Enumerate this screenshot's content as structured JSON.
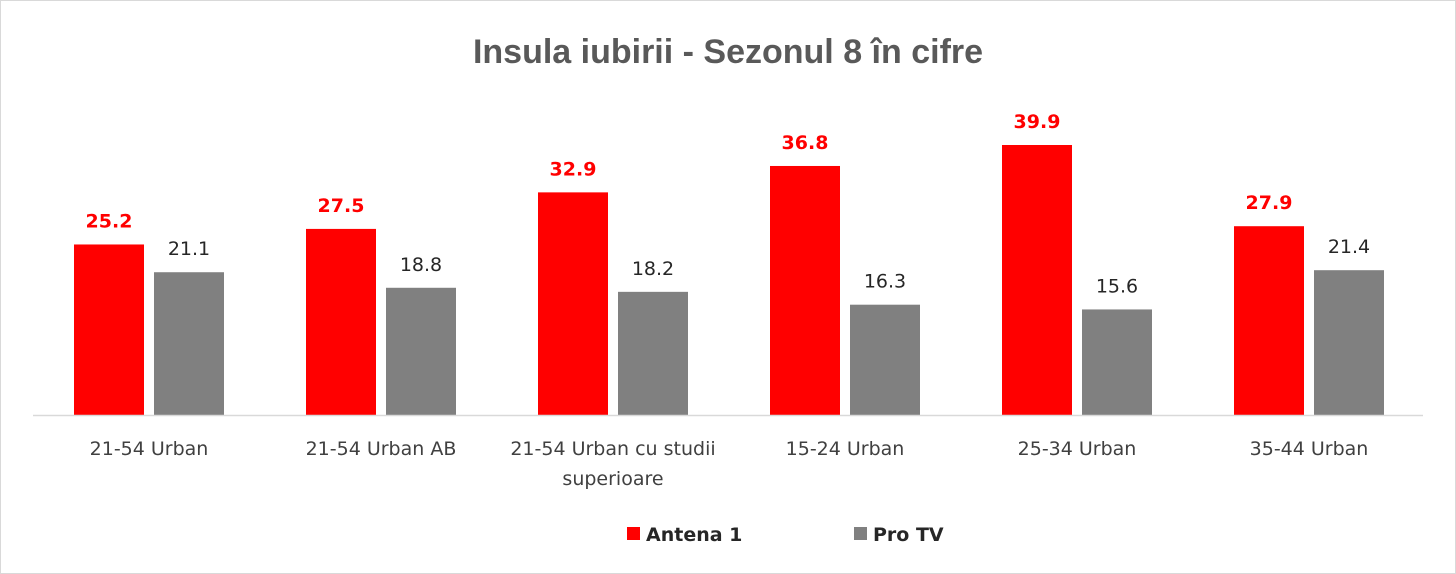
{
  "chart_data": {
    "type": "bar",
    "title": "Insula iubirii - Sezonul 8 în cifre",
    "categories": [
      [
        "21-54 Urban"
      ],
      [
        "21-54 Urban AB"
      ],
      [
        "21-54 Urban cu studii",
        "superioare"
      ],
      [
        "15-24 Urban"
      ],
      [
        "25-34 Urban"
      ],
      [
        "35-44 Urban"
      ]
    ],
    "series": [
      {
        "name": "Antena 1",
        "color": "#ff0000",
        "values": [
          25.2,
          27.5,
          32.9,
          36.8,
          39.9,
          27.9
        ]
      },
      {
        "name": "Pro TV",
        "color": "#808080",
        "values": [
          21.1,
          18.8,
          18.2,
          16.3,
          15.6,
          21.4
        ]
      }
    ],
    "ylim": [
      0,
      45
    ],
    "grid": false,
    "legend_position": "bottom",
    "xlabel": "",
    "ylabel": ""
  }
}
